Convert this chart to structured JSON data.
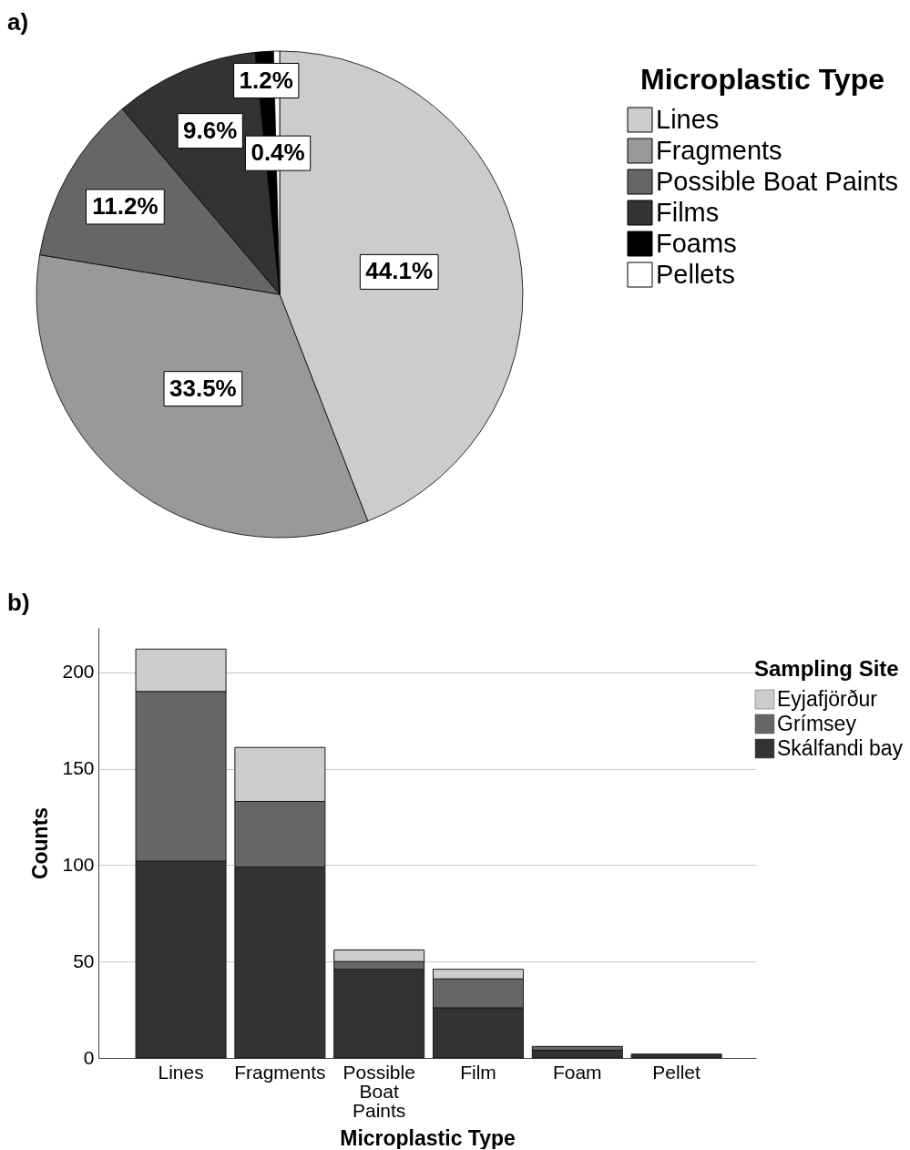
{
  "chart_data": [
    {
      "type": "pie",
      "title": "a)",
      "legend_title": "Microplastic Type",
      "categories": [
        "Lines",
        "Fragments",
        "Possible Boat Paints",
        "Films",
        "Foams",
        "Pellets"
      ],
      "values": [
        44.1,
        33.5,
        11.2,
        9.6,
        1.2,
        0.4
      ],
      "colors": [
        "#cccccc",
        "#999999",
        "#666666",
        "#333333",
        "#000000",
        "#ffffff"
      ],
      "value_labels": [
        "44.1%",
        "33.5%",
        "11.2%",
        "9.6%",
        "1.2%",
        "0.4%"
      ],
      "legend": "top right"
    },
    {
      "type": "bar",
      "title": "b)",
      "xlabel": "Microplastic Type",
      "ylabel": "Counts",
      "legend_title": "Sampling Site",
      "categories": [
        "Lines",
        "Fragments",
        "Possible Boat Paints",
        "Film",
        "Foam",
        "Pellet"
      ],
      "stacked": true,
      "series": [
        {
          "name": "Skálfandi bay",
          "color": "#333333",
          "values": [
            102,
            99,
            46,
            26,
            4,
            2
          ]
        },
        {
          "name": "Grímsey",
          "color": "#666666",
          "values": [
            88,
            34,
            4,
            15,
            2,
            0
          ]
        },
        {
          "name": "Eyjafjörður",
          "color": "#cccccc",
          "values": [
            22,
            28,
            6,
            5,
            0,
            0
          ]
        }
      ],
      "ylim": [
        0,
        223
      ],
      "yticks": [
        0,
        50,
        100,
        150,
        200
      ],
      "grid": "y",
      "legend": "top right"
    }
  ]
}
